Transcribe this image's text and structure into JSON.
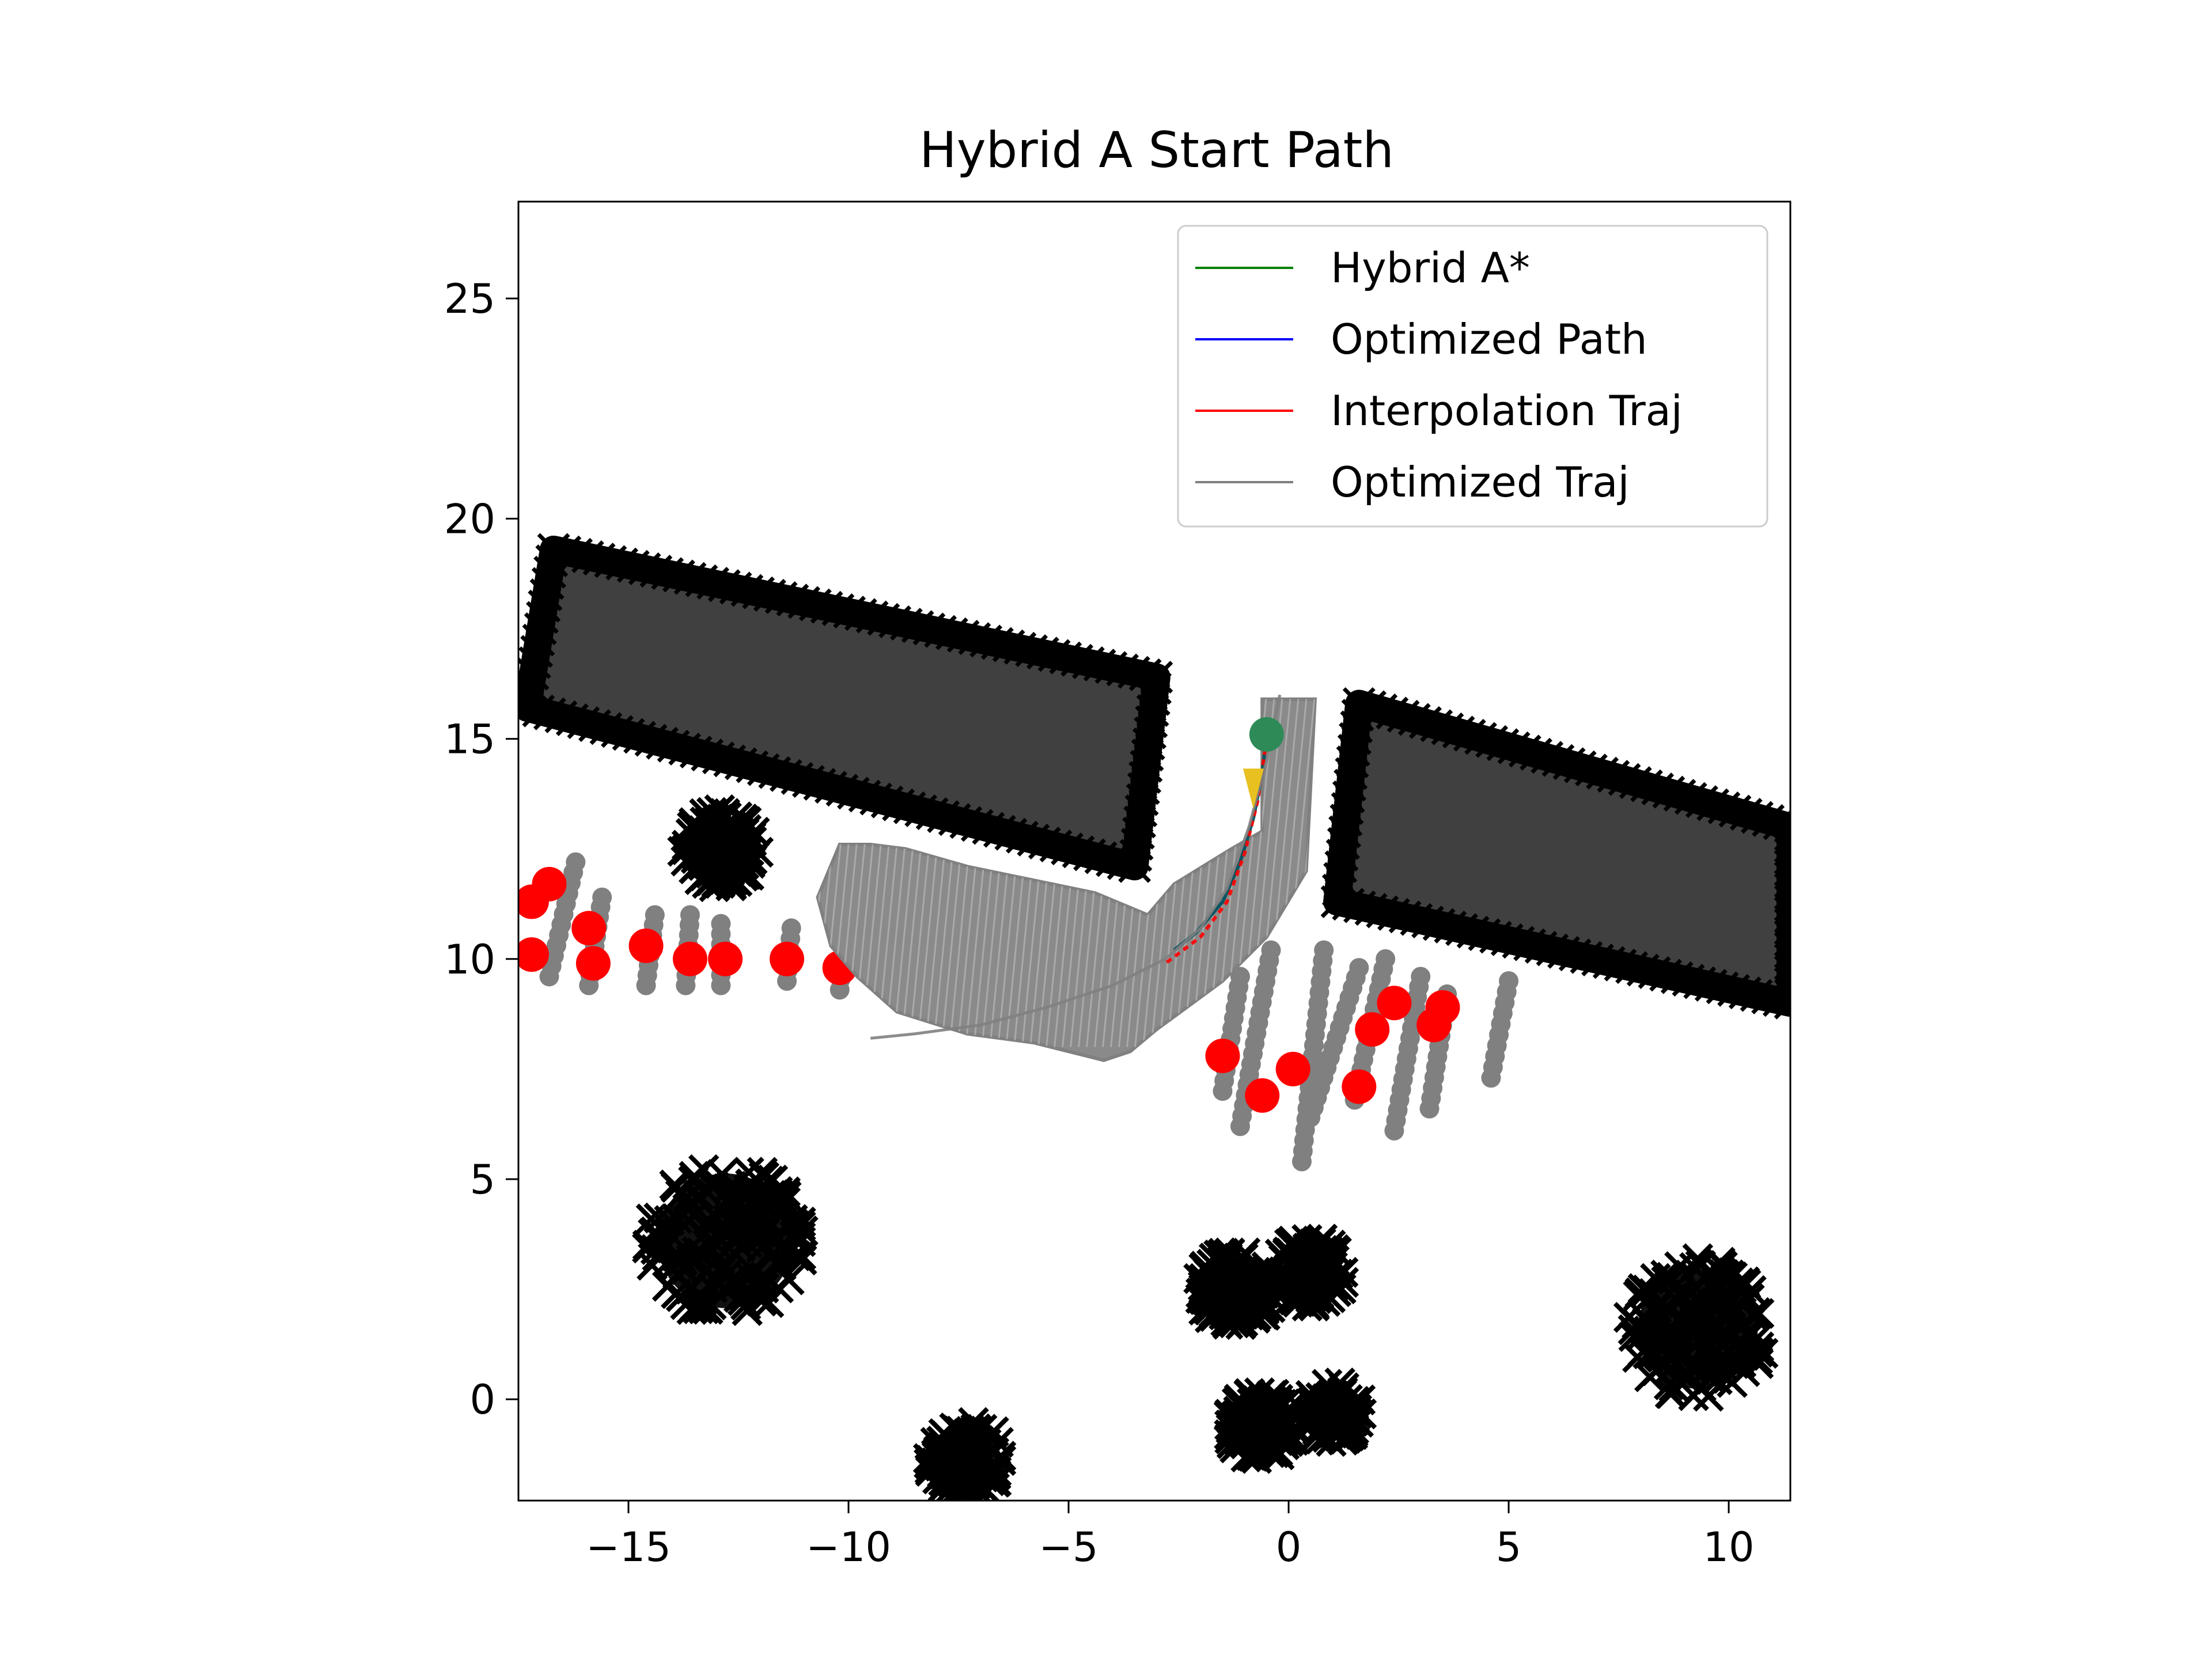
{
  "chart_data": {
    "type": "scatter",
    "title": "Hybrid A Start Path",
    "xlabel": "",
    "ylabel": "",
    "xlim": [
      -17.5,
      11.4
    ],
    "ylim": [
      -2.3,
      27.2
    ],
    "x_ticks": [
      -15,
      -10,
      -5,
      0,
      5,
      10
    ],
    "y_ticks": [
      0,
      5,
      10,
      15,
      20,
      25
    ],
    "x_tick_labels": [
      "−15",
      "−10",
      "−5",
      "0",
      "5",
      "10"
    ],
    "y_tick_labels": [
      "0",
      "5",
      "10",
      "15",
      "20",
      "25"
    ],
    "grid": false,
    "legend_position": "upper-right",
    "legend": [
      {
        "name": "Hybrid A*",
        "color": "#008000"
      },
      {
        "name": "Optimized Path",
        "color": "#0000ff"
      },
      {
        "name": "Interpolation Traj",
        "color": "#ff0000"
      },
      {
        "name": "Optimized Traj",
        "color": "#808080"
      }
    ],
    "series": [
      {
        "name": "Hybrid A*",
        "color": "#008000",
        "x": [
          -0.5,
          -0.6,
          -0.8,
          -1.1,
          -1.5,
          -2.1,
          -2.6
        ],
        "y": [
          15.1,
          14.2,
          13.2,
          12.2,
          11.3,
          10.6,
          10.2
        ]
      },
      {
        "name": "Optimized Path",
        "color": "#0000ff",
        "x": [
          -0.5,
          -0.6,
          -0.8,
          -1.1,
          -1.5,
          -2.1,
          -2.6
        ],
        "y": [
          15.1,
          14.2,
          13.2,
          12.2,
          11.3,
          10.6,
          10.2
        ]
      },
      {
        "name": "Interpolation Traj",
        "color": "#ff0000",
        "x": [
          -0.5,
          -0.7,
          -1.0,
          -1.4,
          -2.0,
          -2.8
        ],
        "y": [
          15.0,
          13.6,
          12.4,
          11.3,
          10.5,
          9.9
        ]
      },
      {
        "name": "Optimized Traj",
        "color": "#808080",
        "x": [
          -0.2,
          -0.5,
          -0.9,
          -1.4,
          -2.0,
          -2.8,
          -4.0,
          -5.5,
          -7.0,
          -8.5,
          -9.5
        ],
        "y": [
          16.0,
          14.5,
          13.0,
          11.6,
          10.7,
          10.0,
          9.4,
          8.9,
          8.5,
          8.3,
          8.2
        ]
      }
    ],
    "obstacles_cross": [
      {
        "cx": -12.9,
        "cy": 12.5,
        "r": 0.9
      },
      {
        "cx": -12.8,
        "cy": 3.6,
        "r": 1.8
      },
      {
        "cx": -7.3,
        "cy": -1.4,
        "r": 0.9
      },
      {
        "cx": -1.2,
        "cy": 2.5,
        "r": 0.9
      },
      {
        "cx": 0.5,
        "cy": 2.9,
        "r": 0.8
      },
      {
        "cx": -0.6,
        "cy": -0.6,
        "r": 0.8
      },
      {
        "cx": 1.0,
        "cy": -0.3,
        "r": 0.7
      },
      {
        "cx": 9.3,
        "cy": 1.6,
        "r": 1.6
      }
    ],
    "parked_slots": [
      {
        "corners": [
          [
            -17.3,
            15.7
          ],
          [
            -16.7,
            19.3
          ],
          [
            -3.0,
            16.4
          ],
          [
            -3.5,
            12.1
          ]
        ]
      },
      {
        "corners": [
          [
            1.1,
            11.3
          ],
          [
            1.6,
            15.8
          ],
          [
            11.4,
            13.0
          ],
          [
            11.4,
            9.0
          ]
        ]
      }
    ],
    "red_markers": [
      [
        -17.2,
        11.3
      ],
      [
        -17.2,
        10.1
      ],
      [
        -16.8,
        11.7
      ],
      [
        -15.9,
        10.7
      ],
      [
        -15.8,
        9.9
      ],
      [
        -14.6,
        10.3
      ],
      [
        -13.6,
        10.0
      ],
      [
        -12.8,
        10.0
      ],
      [
        -11.4,
        10.0
      ],
      [
        -10.2,
        9.8
      ],
      [
        -1.5,
        7.8
      ],
      [
        0.1,
        7.5
      ],
      [
        -0.6,
        6.9
      ],
      [
        1.6,
        7.1
      ],
      [
        1.9,
        8.4
      ],
      [
        2.4,
        9.0
      ],
      [
        3.3,
        8.5
      ],
      [
        3.5,
        8.9
      ]
    ],
    "grey_dot_columns": [
      {
        "x0": -16.8,
        "y0": 9.6,
        "x1": -16.2,
        "y1": 12.2
      },
      {
        "x0": -15.9,
        "y0": 9.4,
        "x1": -15.6,
        "y1": 11.4
      },
      {
        "x0": -14.6,
        "y0": 9.4,
        "x1": -14.4,
        "y1": 11.0
      },
      {
        "x0": -13.7,
        "y0": 9.4,
        "x1": -13.6,
        "y1": 11.0
      },
      {
        "x0": -12.9,
        "y0": 9.4,
        "x1": -12.9,
        "y1": 10.8
      },
      {
        "x0": -11.4,
        "y0": 9.5,
        "x1": -11.3,
        "y1": 10.7
      },
      {
        "x0": -10.2,
        "y0": 9.3,
        "x1": -10.1,
        "y1": 10.5
      },
      {
        "x0": -1.5,
        "y0": 7.0,
        "x1": -1.1,
        "y1": 9.6
      },
      {
        "x0": -1.1,
        "y0": 6.2,
        "x1": -0.4,
        "y1": 10.2
      },
      {
        "x0": 0.3,
        "y0": 5.4,
        "x1": 0.8,
        "y1": 10.2
      },
      {
        "x0": 0.5,
        "y0": 6.4,
        "x1": 1.6,
        "y1": 9.8
      },
      {
        "x0": 1.5,
        "y0": 6.8,
        "x1": 2.2,
        "y1": 10.0
      },
      {
        "x0": 2.4,
        "y0": 6.1,
        "x1": 3.0,
        "y1": 9.6
      },
      {
        "x0": 3.2,
        "y0": 6.6,
        "x1": 3.6,
        "y1": 9.2
      },
      {
        "x0": 4.6,
        "y0": 7.3,
        "x1": 5.0,
        "y1": 9.5
      }
    ],
    "vehicle_footprint": [
      [
        -10.7,
        11.4
      ],
      [
        -10.2,
        12.6
      ],
      [
        -9.5,
        12.6
      ],
      [
        -8.7,
        12.5
      ],
      [
        -7.3,
        12.1
      ],
      [
        -4.4,
        11.5
      ],
      [
        -3.2,
        11.0
      ],
      [
        -2.6,
        11.7
      ],
      [
        -1.3,
        12.5
      ],
      [
        -0.6,
        12.9
      ],
      [
        -0.6,
        15.9
      ],
      [
        0.6,
        15.9
      ],
      [
        0.4,
        12.0
      ],
      [
        -0.5,
        10.5
      ],
      [
        -1.5,
        9.5
      ],
      [
        -3.0,
        8.4
      ],
      [
        -3.6,
        7.9
      ],
      [
        -4.2,
        7.7
      ],
      [
        -5.8,
        8.1
      ],
      [
        -7.3,
        8.3
      ],
      [
        -8.9,
        8.8
      ],
      [
        -9.8,
        9.6
      ],
      [
        -10.4,
        10.3
      ]
    ],
    "start_marker": {
      "x": -0.5,
      "y": 15.1,
      "color": "#2e8b57"
    },
    "end_marker": {
      "x": -0.8,
      "y": 13.8,
      "color": "#e8c020"
    }
  }
}
